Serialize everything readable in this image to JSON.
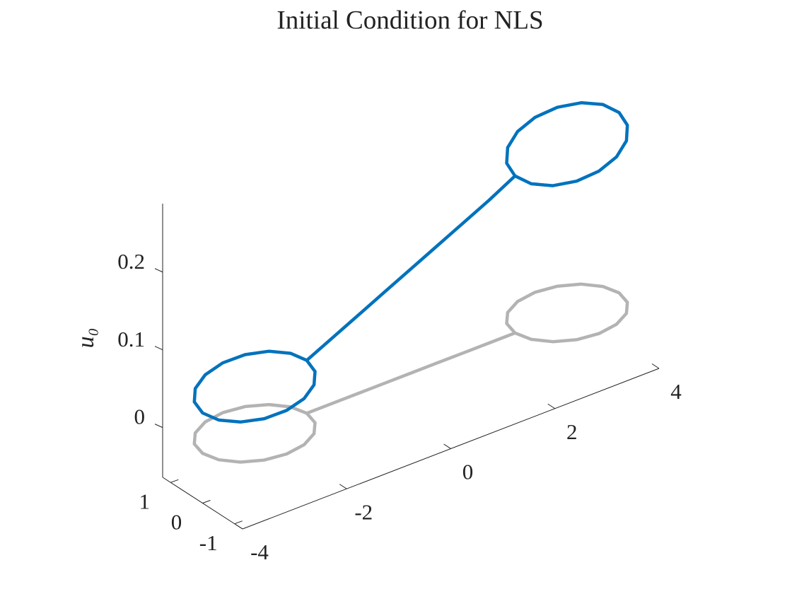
{
  "chart_data": {
    "type": "line3d",
    "title": "Initial Condition for NLS",
    "zlabel": "u₀",
    "xlim": [
      -4,
      4
    ],
    "xticks": [
      -4,
      -2,
      0,
      2,
      4
    ],
    "ylim": [
      -1.25,
      1.25
    ],
    "yticks": [
      -1,
      0,
      1
    ],
    "zlim": [
      -0.064,
      0.288
    ],
    "zticks": [
      0,
      0.1,
      0.2
    ],
    "series": [
      {
        "color": "#b3b3b3",
        "x": [
          -2,
          -2.076,
          -2.293,
          -2.617,
          -3,
          -3.383,
          -3.707,
          -3.924,
          -4,
          -3.924,
          -3.707,
          -3.383,
          -3,
          -2.617,
          -2.293,
          -2.076,
          -2,
          -1.5,
          -1,
          -0.5,
          0,
          0.5,
          1,
          1.5,
          2,
          2.076,
          2.293,
          2.617,
          3,
          3.383,
          3.707,
          3.924,
          4,
          3.924,
          3.707,
          3.383,
          3,
          2.617,
          2.293,
          2.076,
          2
        ],
        "y": [
          0,
          0.383,
          0.707,
          0.924,
          1,
          0.924,
          0.707,
          0.383,
          0,
          -0.383,
          -0.707,
          -0.924,
          -1,
          -0.924,
          -0.707,
          -0.383,
          0,
          0,
          0,
          0,
          0,
          0,
          0,
          0,
          0,
          -0.383,
          -0.707,
          -0.924,
          -1,
          -0.924,
          -0.707,
          -0.383,
          0,
          0.383,
          0.707,
          0.924,
          1,
          0.924,
          0.707,
          0.383,
          0
        ],
        "z": [
          0,
          0,
          0,
          0,
          0,
          0,
          0,
          0,
          0,
          0,
          0,
          0,
          0,
          0,
          0,
          0,
          0,
          0,
          0,
          0,
          0,
          0,
          0,
          0,
          0,
          0,
          0,
          0,
          0,
          0,
          0,
          0,
          0,
          0,
          0,
          0,
          0,
          0,
          0,
          0,
          0
        ]
      },
      {
        "color": "#0072bd",
        "x": [
          -2,
          -2.076,
          -2.293,
          -2.617,
          -3,
          -3.383,
          -3.707,
          -3.924,
          -4,
          -3.924,
          -3.707,
          -3.383,
          -3,
          -2.617,
          -2.293,
          -2.076,
          -2,
          -1.5,
          -1,
          -0.5,
          0,
          0.5,
          1,
          1.5,
          2,
          2.076,
          2.293,
          2.617,
          3,
          3.383,
          3.707,
          3.924,
          4,
          3.924,
          3.707,
          3.383,
          3,
          2.617,
          2.293,
          2.076,
          2
        ],
        "y": [
          0,
          0.383,
          0.707,
          0.924,
          1,
          0.924,
          0.707,
          0.383,
          0,
          -0.383,
          -0.707,
          -0.924,
          -1,
          -0.924,
          -0.707,
          -0.383,
          0,
          0,
          0,
          0,
          0,
          0,
          0,
          0,
          0,
          -0.383,
          -0.707,
          -0.924,
          -1,
          -0.924,
          -0.707,
          -0.383,
          0,
          0.383,
          0.707,
          0.924,
          1,
          0.924,
          0.707,
          0.383,
          0
        ],
        "z": [
          0.068,
          0.0689,
          0.0685,
          0.0668,
          0.064,
          0.0606,
          0.0571,
          0.0541,
          0.052,
          0.0511,
          0.0515,
          0.0532,
          0.056,
          0.0594,
          0.0629,
          0.0659,
          0.068,
          0.0845,
          0.101,
          0.1175,
          0.134,
          0.1505,
          0.167,
          0.1835,
          0.202,
          0.2001,
          0.2007,
          0.2039,
          0.209,
          0.2153,
          0.2219,
          0.2278,
          0.232,
          0.234,
          0.2333,
          0.2301,
          0.225,
          0.2187,
          0.2121,
          0.2062,
          0.202
        ]
      }
    ]
  }
}
